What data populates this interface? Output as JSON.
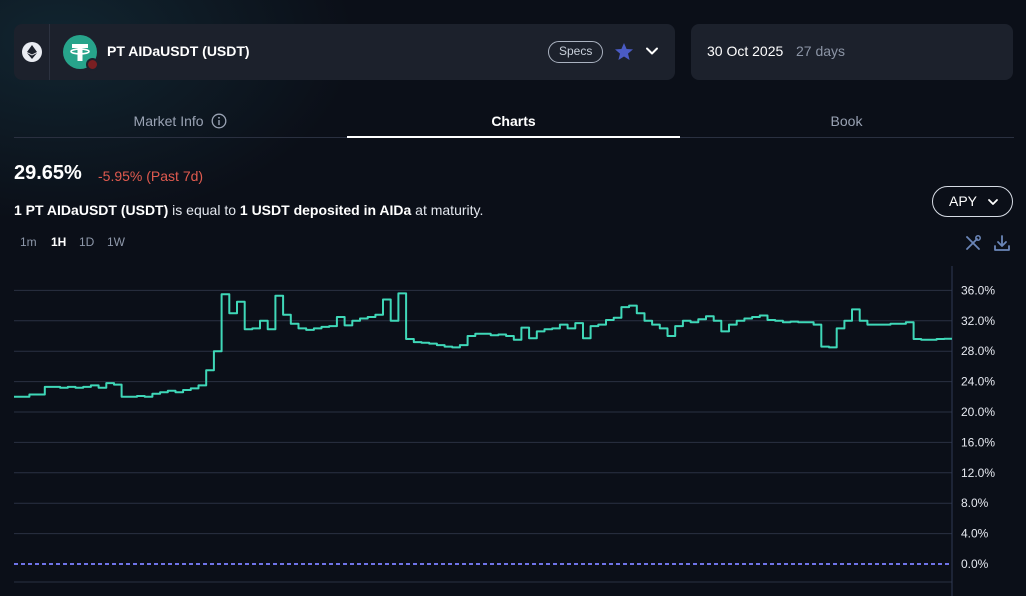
{
  "market": {
    "name": "PT AIDaUSDT (USDT)",
    "specs_label": "Specs",
    "chain_icon": "ethereum-icon",
    "token_icon": "tether-icon"
  },
  "maturity": {
    "date": "30 Oct 2025",
    "days": "27 days"
  },
  "tabs": [
    {
      "label": "Market Info"
    },
    {
      "label": "Charts"
    },
    {
      "label": "Book"
    }
  ],
  "stats": {
    "apy": "29.65%",
    "change": "-5.95% (Past 7d)",
    "equiv_prefix": "1 PT AIDaUSDT (USDT)",
    "equiv_mid": " is equal to ",
    "equiv_amount": "1 USDT deposited in AIDa",
    "equiv_suffix": " at maturity."
  },
  "metric_dropdown": {
    "selected": "APY"
  },
  "intervals": [
    "1m",
    "1H",
    "1D",
    "1W"
  ],
  "active_interval": "1H",
  "colors": {
    "line": "#3fd8b8",
    "negative": "#e05a4f",
    "baseline": "#6f73e8",
    "star": "#4a5bc4"
  },
  "chart_data": {
    "type": "line",
    "title": "",
    "xlabel": "",
    "ylabel": "",
    "ylim": [
      0,
      38
    ],
    "y_ticks": [
      "0.0%",
      "4.0%",
      "8.0%",
      "12.0%",
      "16.0%",
      "20.0%",
      "24.0%",
      "28.0%",
      "32.0%",
      "36.0%"
    ],
    "y_tick_values": [
      0,
      4,
      8,
      12,
      16,
      20,
      24,
      28,
      32,
      36
    ],
    "baseline_value": 0,
    "grid": true,
    "series": [
      {
        "values": [
          22.0,
          22.0,
          22.3,
          22.3,
          23.3,
          23.3,
          23.2,
          23.3,
          23.2,
          23.3,
          23.5,
          23.2,
          23.8,
          23.6,
          22.0,
          22.0,
          22.1,
          22.0,
          22.4,
          22.6,
          22.8,
          22.6,
          22.9,
          23.1,
          23.5,
          25.5,
          28.0,
          35.5,
          33.0,
          34.5,
          30.9,
          31.0,
          32.0,
          30.9,
          35.3,
          32.8,
          31.6,
          31.0,
          30.8,
          31.0,
          31.2,
          31.3,
          32.5,
          31.4,
          32.0,
          32.3,
          32.5,
          32.8,
          34.8,
          32.0,
          35.6,
          29.6,
          29.2,
          29.1,
          29.0,
          28.8,
          28.6,
          28.5,
          28.8,
          30.0,
          30.3,
          30.3,
          30.1,
          30.2,
          30.0,
          29.5,
          31.1,
          29.7,
          30.6,
          30.9,
          31.0,
          31.5,
          31.0,
          31.7,
          29.7,
          31.3,
          31.5,
          32.1,
          32.4,
          33.8,
          34.0,
          33.0,
          32.0,
          31.5,
          31.0,
          30.0,
          31.3,
          32.0,
          31.8,
          32.2,
          32.6,
          32.0,
          30.6,
          31.5,
          32.0,
          32.3,
          32.5,
          32.7,
          32.1,
          32.0,
          31.8,
          31.9,
          31.8,
          31.8,
          31.5,
          28.6,
          28.5,
          31.0,
          32.0,
          33.5,
          32.0,
          31.5,
          31.5,
          31.5,
          31.6,
          31.6,
          31.8,
          29.6,
          29.5,
          29.5,
          29.6,
          29.65
        ]
      }
    ]
  }
}
